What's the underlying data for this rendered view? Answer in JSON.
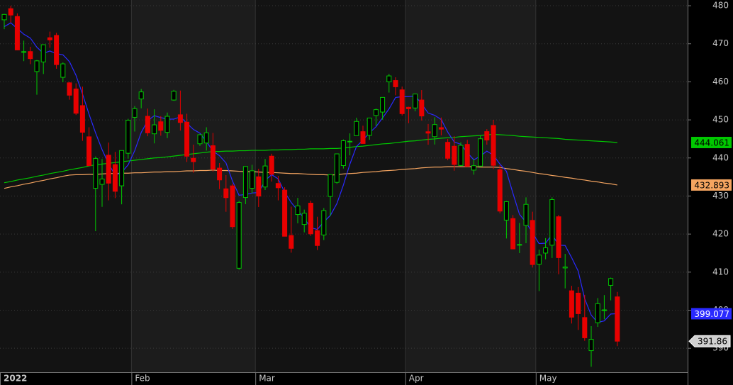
{
  "chart_data": {
    "type": "candlestick",
    "categories": [
      "2022",
      null,
      null,
      null,
      null,
      null,
      null,
      null,
      null,
      null,
      null,
      null,
      null,
      null,
      null,
      null,
      null,
      null,
      null,
      null,
      "Feb",
      null,
      null,
      null,
      null,
      null,
      null,
      null,
      null,
      null,
      null,
      null,
      null,
      null,
      null,
      null,
      null,
      null,
      null,
      "Mar",
      null,
      null,
      null,
      null,
      null,
      null,
      null,
      null,
      null,
      null,
      null,
      null,
      null,
      null,
      null,
      null,
      null,
      null,
      null,
      null,
      null,
      null,
      "Apr",
      null,
      null,
      null,
      null,
      null,
      null,
      null,
      null,
      null,
      null,
      null,
      null,
      null,
      null,
      null,
      null,
      null,
      null,
      null,
      "May",
      null,
      null,
      null,
      null,
      null,
      null,
      null,
      null,
      null,
      null,
      null,
      null
    ],
    "open": [
      476.3,
      479.22,
      477.16,
      467.89,
      467.95,
      462.7,
      465.23,
      471.59,
      472.19,
      461.19,
      459.74,
      458.13,
      453.75,
      445.56,
      432.03,
      433.06,
      440.72,
      438.26,
      432.68,
      441.24,
      450.68,
      455.5,
      450.95,
      446.35,
      449.51,
      446.73,
      455.22,
      451.34,
      449.41,
      439.92,
      443.73,
      443.93,
      443.22,
      437.33,
      431.89,
      432.66,
      411.02,
      429.61,
      432.03,
      435.04,
      432.37,
      440.47,
      433.3,
      431.55,
      419.62,
      425.14,
      422.52,
      428.12,
      420.89,
      419.77,
      429.89,
      433.59,
      438.0,
      444.34,
      445.86,
      446.91,
      445.94,
      451.16,
      452.06,
      460.02,
      460.34,
      457.89,
      453.31,
      453.13,
      455.22,
      446.89,
      445.59,
      447.97,
      444.11,
      443.08,
      438.03,
      443.55,
      436.81,
      437.86,
      446.92,
      448.54,
      436.91,
      423.67,
      424.07,
      417.24,
      422.29,
      423.59,
      412.07,
      415.01,
      417.08,
      424.55,
      411.1,
      405.1,
      404.49,
      398.07,
      389.37,
      396.71,
      399.98,
      406.53,
      403.5
    ],
    "high": [
      477.85,
      479.98,
      477.98,
      470.82,
      469.2,
      465.74,
      469.85,
      473.2,
      472.88,
      465.09,
      459.96,
      459.61,
      458.74,
      448.06,
      440.38,
      439.72,
      444.04,
      441.59,
      442.0,
      450.28,
      453.63,
      458.12,
      452.97,
      452.78,
      450.99,
      451.92,
      457.88,
      457.71,
      451.61,
      443.5,
      446.28,
      448.06,
      446.57,
      438.66,
      435.5,
      433.26,
      428.76,
      437.84,
      438.2,
      437.17,
      439.72,
      441.11,
      435.3,
      432.3,
      427.21,
      429.51,
      426.43,
      428.77,
      424.55,
      426.84,
      435.68,
      441.07,
      444.86,
      446.46,
      450.58,
      448.49,
      450.5,
      452.98,
      455.91,
      462.07,
      461.2,
      458.76,
      453.46,
      456.91,
      457.83,
      448.93,
      450.69,
      450.63,
      445.0,
      445.75,
      444.11,
      444.73,
      439.75,
      445.8,
      447.57,
      450.01,
      438.08,
      428.69,
      425.0,
      422.92,
      429.64,
      425.87,
      415.92,
      418.93,
      429.66,
      425.0,
      414.8,
      406.41,
      406.08,
      404.04,
      395.8,
      403.18,
      403.97,
      408.57,
      404.8
    ],
    "low": [
      473.85,
      475.58,
      468.28,
      465.43,
      464.65,
      456.6,
      462.05,
      468.94,
      463.44,
      459.9,
      455.31,
      451.29,
      444.5,
      437.95,
      420.76,
      427.15,
      428.86,
      429.45,
      427.82,
      439.81,
      446.94,
      453.05,
      445.71,
      443.83,
      445.85,
      445.22,
      455.01,
      447.2,
      438.94,
      436.12,
      443.18,
      441.94,
      436.42,
      431.82,
      425.86,
      421.35,
      410.64,
      427.86,
      430.7,
      427.11,
      431.57,
      433.8,
      428.86,
      419.36,
      415.12,
      422.82,
      420.44,
      419.53,
      415.79,
      418.42,
      424.8,
      433.19,
      437.22,
      440.68,
      445.86,
      443.71,
      444.76,
      448.43,
      450.06,
      457.18,
      456.47,
      451.16,
      449.14,
      452.26,
      449.82,
      443.47,
      443.53,
      445.94,
      439.39,
      436.65,
      437.84,
      437.68,
      435.61,
      437.68,
      443.48,
      437.1,
      425.44,
      418.84,
      416.07,
      415.01,
      417.6,
      411.21,
      405.02,
      413.36,
      413.71,
      409.44,
      405.73,
      396.5,
      394.82,
      391.96,
      385.15,
      395.61,
      397.6,
      402.58,
      390.55
    ],
    "close": [
      477.71,
      477.55,
      468.38,
      467.94,
      466.09,
      465.51,
      469.75,
      471.02,
      464.53,
      464.72,
      456.49,
      451.75,
      446.75,
      437.98,
      439.84,
      434.47,
      433.38,
      431.24,
      441.95,
      449.91,
      452.95,
      457.35,
      446.6,
      448.7,
      447.26,
      450.94,
      457.54,
      449.32,
      440.46,
      439.02,
      446.1,
      446.6,
      437.06,
      434.23,
      429.57,
      421.95,
      428.3,
      437.75,
      436.63,
      429.98,
      437.89,
      435.71,
      432.17,
      419.43,
      416.25,
      427.41,
      425.48,
      420.07,
      417.0,
      426.17,
      435.62,
      441.07,
      444.52,
      444.39,
      449.59,
      443.8,
      450.49,
      452.69,
      455.91,
      461.55,
      458.7,
      451.64,
      452.92,
      456.8,
      451.03,
      446.52,
      448.77,
      447.57,
      439.92,
      438.29,
      443.31,
      437.79,
      437.97,
      445.04,
      444.71,
      438.06,
      426.04,
      428.51,
      416.1,
      417.27,
      427.81,
      412.0,
      414.48,
      416.38,
      429.06,
      413.81,
      411.34,
      398.17,
      399.09,
      392.75,
      392.34,
      401.72,
      400.09,
      408.32,
      391.86
    ],
    "overlays": [
      {
        "color": "#00c800",
        "values": [
          433.5,
          433.8,
          434.2,
          434.5,
          434.8,
          435.2,
          435.5,
          435.9,
          436.2,
          436.5,
          436.9,
          437.2,
          437.5,
          437.9,
          438.2,
          438.4,
          438.6,
          438.8,
          439.0,
          439.2,
          439.4,
          439.6,
          439.8,
          440.0,
          440.1,
          440.3,
          440.5,
          440.7,
          440.9,
          441.1,
          441.3,
          441.5,
          441.7,
          441.7,
          441.8,
          441.8,
          441.9,
          441.9,
          442.0,
          442.0,
          442.0,
          442.1,
          442.1,
          442.2,
          442.2,
          442.3,
          442.3,
          442.4,
          442.4,
          442.4,
          442.5,
          442.5,
          442.6,
          442.8,
          443.0,
          443.1,
          443.3,
          443.5,
          443.7,
          443.8,
          444.0,
          444.2,
          444.4,
          444.5,
          444.7,
          444.9,
          445.0,
          445.2,
          445.3,
          445.4,
          445.6,
          445.7,
          445.8,
          445.9,
          446.1,
          446.2,
          446.1,
          446.0,
          445.9,
          445.7,
          445.6,
          445.5,
          445.4,
          445.3,
          445.2,
          445.1,
          444.9,
          444.8,
          444.7,
          444.6,
          444.5,
          444.4,
          444.3,
          444.2,
          444.061
        ]
      },
      {
        "color": "#f4a460",
        "values": [
          432.0,
          432.4,
          432.7,
          433.1,
          433.4,
          433.8,
          434.1,
          434.5,
          434.8,
          435.2,
          435.5,
          435.6,
          435.6,
          435.7,
          435.7,
          435.8,
          435.9,
          435.9,
          436.0,
          436.0,
          436.1,
          436.1,
          436.2,
          436.3,
          436.3,
          436.4,
          436.4,
          436.5,
          436.6,
          436.6,
          436.7,
          436.7,
          436.8,
          436.7,
          436.7,
          436.6,
          436.5,
          436.4,
          436.4,
          436.3,
          436.2,
          436.2,
          436.1,
          436.0,
          435.9,
          435.9,
          435.8,
          435.7,
          435.6,
          435.6,
          435.5,
          435.6,
          435.8,
          435.9,
          436.0,
          436.2,
          436.3,
          436.4,
          436.6,
          436.7,
          436.8,
          437.0,
          437.1,
          437.2,
          437.4,
          437.5,
          437.6,
          437.6,
          437.7,
          437.7,
          437.7,
          437.7,
          437.7,
          437.6,
          437.6,
          437.6,
          437.5,
          437.2,
          437.0,
          436.7,
          436.5,
          436.2,
          435.9,
          435.7,
          435.4,
          435.2,
          434.9,
          434.7,
          434.4,
          434.2,
          433.9,
          433.7,
          433.4,
          433.2,
          432.893
        ]
      },
      {
        "color": "#2a2aff",
        "values": [
          474.5,
          475.5,
          474.0,
          472.5,
          471.5,
          469.1,
          467.5,
          468.1,
          467.4,
          467.1,
          465.3,
          461.7,
          456.8,
          451.5,
          446.6,
          442.2,
          438.5,
          435.4,
          436.2,
          438.2,
          441.9,
          446.7,
          449.8,
          451.1,
          450.6,
          450.2,
          450.2,
          450.8,
          449.1,
          447.5,
          446.5,
          444.3,
          441.8,
          440.6,
          438.7,
          433.9,
          430.2,
          430.4,
          430.8,
          430.9,
          434.1,
          435.6,
          434.5,
          431.0,
          428.3,
          426.2,
          424.1,
          421.7,
          421.2,
          423.2,
          424.9,
          428.0,
          432.9,
          438.4,
          443.0,
          444.7,
          446.6,
          448.2,
          450.5,
          452.9,
          455.9,
          456.1,
          456.1,
          456.3,
          454.2,
          451.8,
          451.2,
          450.1,
          446.8,
          444.2,
          443.6,
          441.4,
          439.5,
          440.5,
          441.8,
          440.7,
          438.4,
          436.5,
          430.7,
          425.2,
          423.1,
          420.3,
          417.5,
          417.6,
          419.9,
          417.1,
          417.0,
          413.8,
          410.3,
          403.0,
          398.7,
          396.8,
          397.2,
          399.0,
          399.077
        ]
      }
    ],
    "up_color": "#00c800",
    "down_color": "#e80000",
    "ylim": [
      383.7,
      481.5
    ],
    "yticks": [
      390,
      400,
      410,
      420,
      430,
      440,
      450,
      460,
      470,
      480
    ],
    "grid": true
  }
}
